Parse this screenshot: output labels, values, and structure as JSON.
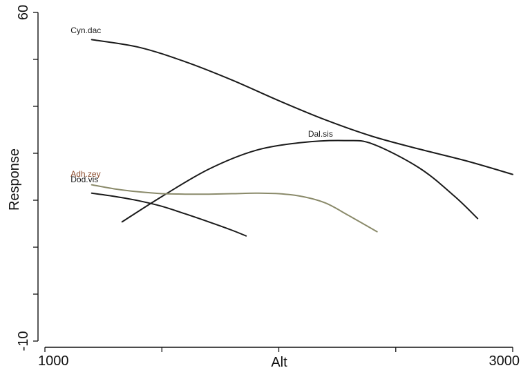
{
  "chart_data": {
    "type": "line",
    "title": "",
    "xlabel": "Alt",
    "ylabel": "Response",
    "xlim": [
      1000,
      3000
    ],
    "ylim": [
      -10,
      60
    ],
    "x_ticks": [
      1000,
      1500,
      2000,
      2500,
      3000
    ],
    "x_tick_labels": [
      "1000",
      "",
      "",
      "",
      "3000"
    ],
    "y_ticks": [
      -10,
      0,
      10,
      20,
      30,
      40,
      50,
      60
    ],
    "y_tick_labels": [
      "-10",
      "",
      "",
      "",
      "",
      "",
      "",
      "60"
    ],
    "grid": false,
    "series": [
      {
        "name": "Cyn.dac",
        "color": "#1a1a1a",
        "x": [
          1200,
          1400,
          1600,
          1800,
          2000,
          2200,
          2400,
          2600,
          2800,
          3000
        ],
        "y": [
          54.2,
          52.6,
          49.5,
          45.6,
          41.2,
          37.1,
          33.6,
          30.9,
          28.4,
          25.5
        ]
      },
      {
        "name": "Dal.sis",
        "color": "#1a1a1a",
        "x": [
          1330,
          1500,
          1700,
          1900,
          2100,
          2280,
          2400,
          2600,
          2750,
          2850
        ],
        "y": [
          15.4,
          20.8,
          26.6,
          30.6,
          32.3,
          32.7,
          32.0,
          26.9,
          20.9,
          16.1
        ]
      },
      {
        "name": "Adh.zey",
        "color": "#8a8a6a",
        "x": [
          1200,
          1300,
          1400,
          1500,
          1600,
          1700,
          1800,
          1900,
          2000,
          2100,
          2200,
          2300,
          2420
        ],
        "y": [
          23.3,
          22.4,
          21.8,
          21.4,
          21.3,
          21.3,
          21.4,
          21.5,
          21.4,
          20.8,
          19.4,
          16.7,
          13.3
        ]
      },
      {
        "name": "Dod.vis",
        "color": "#1a1a1a",
        "x": [
          1200,
          1300,
          1400,
          1500,
          1600,
          1700,
          1800,
          1860
        ],
        "y": [
          21.5,
          20.8,
          19.9,
          18.7,
          17.1,
          15.4,
          13.6,
          12.4
        ]
      }
    ],
    "labels": [
      {
        "text": "Cyn.dac",
        "x": 1110,
        "y": 55.6,
        "color": "#1a1a1a"
      },
      {
        "text": "Dal.sis",
        "x": 2125,
        "y": 33.5,
        "color": "#1a1a1a"
      },
      {
        "text": "Adh.zey",
        "x": 1110,
        "y": 25.0,
        "color": "#8b4a2b"
      },
      {
        "text": "Dod.vis",
        "x": 1110,
        "y": 23.8,
        "color": "#1a1a1a"
      }
    ]
  }
}
